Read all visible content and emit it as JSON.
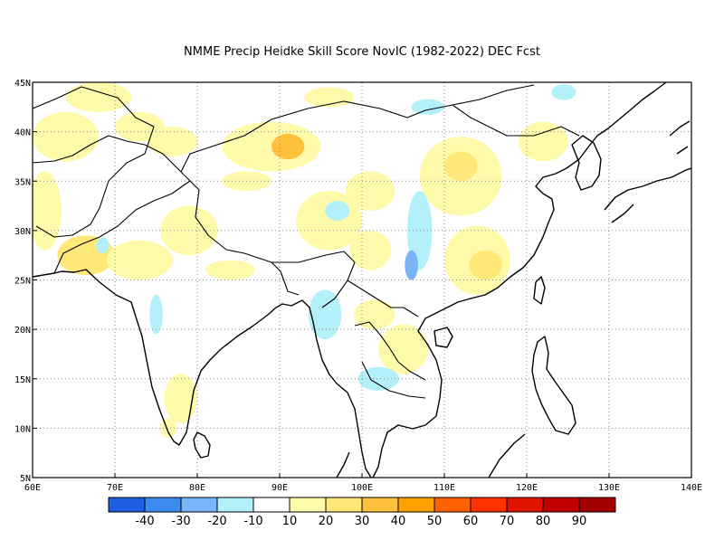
{
  "title": "NMME Precip Heidke Skill Score NovIC (1982-2022) DEC Fcst",
  "map": {
    "lon_range": [
      60,
      140
    ],
    "lat_range": [
      5,
      45
    ],
    "lon_ticks": [
      {
        "value": 60,
        "label": "60E"
      },
      {
        "value": 70,
        "label": "70E"
      },
      {
        "value": 80,
        "label": "80E"
      },
      {
        "value": 90,
        "label": "90E"
      },
      {
        "value": 100,
        "label": "100E"
      },
      {
        "value": 110,
        "label": "110E"
      },
      {
        "value": 120,
        "label": "120E"
      },
      {
        "value": 130,
        "label": "130E"
      },
      {
        "value": 140,
        "label": "140E"
      }
    ],
    "lat_ticks": [
      {
        "value": 5,
        "label": "5N"
      },
      {
        "value": 10,
        "label": "10N"
      },
      {
        "value": 15,
        "label": "15N"
      },
      {
        "value": 20,
        "label": "20N"
      },
      {
        "value": 25,
        "label": "25N"
      },
      {
        "value": 30,
        "label": "30N"
      },
      {
        "value": 35,
        "label": "35N"
      },
      {
        "value": 40,
        "label": "40N"
      },
      {
        "value": 45,
        "label": "45N"
      }
    ],
    "grid": "dotted",
    "skill_patches": [
      {
        "lon": 68,
        "lat": 43.5,
        "rx": 4,
        "ry": 1.5,
        "level": "10-20"
      },
      {
        "lon": 64,
        "lat": 39.5,
        "rx": 4,
        "ry": 2.5,
        "level": "10-20"
      },
      {
        "lon": 73,
        "lat": 40.5,
        "rx": 3,
        "ry": 1.5,
        "level": "10-20"
      },
      {
        "lon": 77,
        "lat": 39,
        "rx": 3,
        "ry": 1.5,
        "level": "10-20"
      },
      {
        "lon": 61.5,
        "lat": 32,
        "rx": 2,
        "ry": 4,
        "level": "10-20"
      },
      {
        "lon": 66.5,
        "lat": 27.5,
        "rx": 3.5,
        "ry": 2,
        "level": "20-30"
      },
      {
        "lon": 73,
        "lat": 27,
        "rx": 4,
        "ry": 2,
        "level": "10-20"
      },
      {
        "lon": 79,
        "lat": 30,
        "rx": 3.5,
        "ry": 2.5,
        "level": "10-20"
      },
      {
        "lon": 84,
        "lat": 26,
        "rx": 3,
        "ry": 1,
        "level": "10-20"
      },
      {
        "lon": 89,
        "lat": 38.5,
        "rx": 6,
        "ry": 2.5,
        "level": "10-20"
      },
      {
        "lon": 91,
        "lat": 38.5,
        "rx": 2,
        "ry": 1.3,
        "level": "30-40"
      },
      {
        "lon": 86,
        "lat": 35,
        "rx": 3,
        "ry": 1,
        "level": "10-20"
      },
      {
        "lon": 96,
        "lat": 31,
        "rx": 4,
        "ry": 3,
        "level": "10-20"
      },
      {
        "lon": 101,
        "lat": 34,
        "rx": 3,
        "ry": 2,
        "level": "10-20"
      },
      {
        "lon": 96,
        "lat": 43.5,
        "rx": 3,
        "ry": 1,
        "level": "10-20"
      },
      {
        "lon": 112,
        "lat": 35.5,
        "rx": 5,
        "ry": 4,
        "level": "10-20"
      },
      {
        "lon": 112,
        "lat": 36.5,
        "rx": 2,
        "ry": 1.5,
        "level": "20-30"
      },
      {
        "lon": 114,
        "lat": 27,
        "rx": 4,
        "ry": 3.5,
        "level": "10-20"
      },
      {
        "lon": 115,
        "lat": 26.5,
        "rx": 2,
        "ry": 1.5,
        "level": "20-30"
      },
      {
        "lon": 105,
        "lat": 18,
        "rx": 3,
        "ry": 2.5,
        "level": "10-20"
      },
      {
        "lon": 101.5,
        "lat": 21.5,
        "rx": 2.5,
        "ry": 1.5,
        "level": "10-20"
      },
      {
        "lon": 122,
        "lat": 39,
        "rx": 3,
        "ry": 2,
        "level": "10-20"
      },
      {
        "lon": 78,
        "lat": 13,
        "rx": 2,
        "ry": 2.5,
        "level": "10-20"
      },
      {
        "lon": 76.5,
        "lat": 10,
        "rx": 1,
        "ry": 1,
        "level": "10-20"
      },
      {
        "lon": 101,
        "lat": 28,
        "rx": 2.5,
        "ry": 2,
        "level": "10-20"
      },
      {
        "lon": 107,
        "lat": 30,
        "rx": 1.5,
        "ry": 4,
        "level": "neg10-20"
      },
      {
        "lon": 106,
        "lat": 26.5,
        "rx": 0.8,
        "ry": 1.5,
        "level": "neg20-30"
      },
      {
        "lon": 97,
        "lat": 32,
        "rx": 1.5,
        "ry": 1,
        "level": "neg10-20"
      },
      {
        "lon": 108,
        "lat": 42.5,
        "rx": 2,
        "ry": 0.8,
        "level": "neg10-20"
      },
      {
        "lon": 124.5,
        "lat": 44,
        "rx": 1.5,
        "ry": 0.8,
        "level": "neg10-20"
      },
      {
        "lon": 95.5,
        "lat": 21.5,
        "rx": 2,
        "ry": 2.5,
        "level": "neg10-20"
      },
      {
        "lon": 102,
        "lat": 15,
        "rx": 2.5,
        "ry": 1.2,
        "level": "neg10-20"
      },
      {
        "lon": 75,
        "lat": 21.5,
        "rx": 0.8,
        "ry": 2,
        "level": "neg10-20"
      },
      {
        "lon": 68.5,
        "lat": 28.5,
        "rx": 0.8,
        "ry": 0.8,
        "level": "neg10-20"
      }
    ]
  },
  "colorbar": {
    "colors": [
      "#1f60e0",
      "#3c8cf0",
      "#78b4f8",
      "#b4f0fa",
      "#ffffff",
      "#fffaaa",
      "#ffe878",
      "#ffc03c",
      "#ffa000",
      "#ff6000",
      "#ff3200",
      "#e11400",
      "#c00000",
      "#a50000"
    ],
    "labels": [
      "-40",
      "-30",
      "-20",
      "-10",
      "10",
      "20",
      "30",
      "40",
      "50",
      "60",
      "70",
      "80",
      "90"
    ]
  },
  "level_colors": {
    "neg20-30": "#78b4f8",
    "neg10-20": "#b4f0fa",
    "10-20": "#fffaaa",
    "20-30": "#ffe878",
    "30-40": "#ffc03c"
  }
}
